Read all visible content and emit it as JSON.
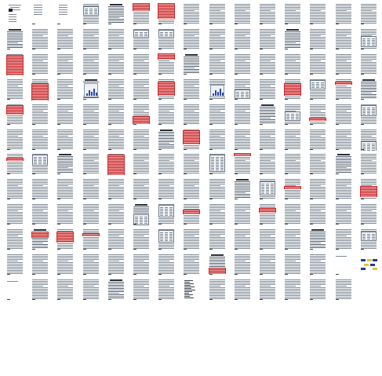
{
  "document": {
    "columns": 15,
    "rows": 13,
    "total_pages": 179,
    "last_row_pages": 7,
    "pages": {
      "1": {
        "kind": "cover"
      },
      "2": {
        "kind": "front"
      },
      "3": {
        "kind": "front"
      },
      "4": {
        "kind": "text",
        "table": [
          4,
          14
        ]
      },
      "5": {
        "kind": "text"
      },
      "6": {
        "kind": "text",
        "highlight": [
          0,
          10
        ]
      },
      "7": {
        "kind": "text",
        "highlight": [
          0,
          20
        ]
      },
      "16": {
        "kind": "text",
        "highlight": [
          28,
          40
        ]
      },
      "21": {
        "kind": "text",
        "table": [
          2,
          10
        ]
      },
      "22": {
        "kind": "text",
        "table": [
          2,
          10
        ]
      },
      "30": {
        "kind": "text",
        "table": [
          10,
          22
        ]
      },
      "31": {
        "kind": "text",
        "highlight": [
          2,
          34
        ]
      },
      "37": {
        "kind": "text",
        "highlight": [
          0,
          8
        ]
      },
      "47": {
        "kind": "text",
        "highlight": [
          6,
          28
        ]
      },
      "49": {
        "kind": "text",
        "figure": [
          6,
          22
        ]
      },
      "52": {
        "kind": "text",
        "highlight": [
          4,
          22
        ]
      },
      "54": {
        "kind": "text",
        "figure": [
          8,
          22
        ]
      },
      "55": {
        "kind": "text",
        "table": [
          14,
          24
        ]
      },
      "57": {
        "kind": "text",
        "highlight": [
          6,
          22
        ]
      },
      "58": {
        "kind": "text",
        "table": [
          2,
          12
        ]
      },
      "59": {
        "kind": "text",
        "highlight": [
          4,
          8
        ]
      },
      "61": {
        "kind": "text",
        "highlight": [
          2,
          14
        ]
      },
      "66": {
        "kind": "text",
        "highlight": [
          16,
          26
        ]
      },
      "72": {
        "kind": "text",
        "table": [
          10,
          20
        ]
      },
      "73": {
        "kind": "text",
        "highlight": [
          18,
          22
        ]
      },
      "75": {
        "kind": "text",
        "table": [
          2,
          14
        ]
      },
      "83": {
        "kind": "text",
        "highlight": [
          2,
          20
        ]
      },
      "90": {
        "kind": "text",
        "table": [
          16,
          28
        ]
      },
      "91": {
        "kind": "text",
        "highlight": [
          6,
          10
        ]
      },
      "92": {
        "kind": "text",
        "table": [
          2,
          14
        ]
      },
      "95": {
        "kind": "text",
        "highlight": [
          2,
          28
        ]
      },
      "99": {
        "kind": "text",
        "table": [
          2,
          22
        ]
      },
      "100": {
        "kind": "text",
        "highlight": [
          0,
          4
        ]
      },
      "116": {
        "kind": "text",
        "table": [
          4,
          20
        ]
      },
      "117": {
        "kind": "text",
        "highlight": [
          10,
          14
        ]
      },
      "120": {
        "kind": "text",
        "highlight": [
          10,
          24
        ]
      },
      "126": {
        "kind": "text",
        "table": [
          14,
          26
        ]
      },
      "127": {
        "kind": "text",
        "table": [
          2,
          16
        ]
      },
      "128": {
        "kind": "text",
        "highlight": [
          8,
          14
        ]
      },
      "131": {
        "kind": "text",
        "highlight": [
          6,
          12
        ]
      },
      "137": {
        "kind": "text",
        "highlight": [
          4,
          12
        ]
      },
      "138": {
        "kind": "text",
        "highlight": [
          4,
          18
        ]
      },
      "139": {
        "kind": "text",
        "highlight": [
          6,
          10
        ]
      },
      "142": {
        "kind": "text",
        "table": [
          2,
          16
        ]
      },
      "150": {
        "kind": "text",
        "table": [
          4,
          14
        ]
      },
      "159": {
        "kind": "text",
        "highlight": [
          18,
          26
        ]
      },
      "164": {
        "kind": "sparse"
      },
      "165": {
        "kind": "diagram"
      },
      "166": {
        "kind": "sparse"
      },
      "173": {
        "kind": "toc"
      }
    }
  }
}
